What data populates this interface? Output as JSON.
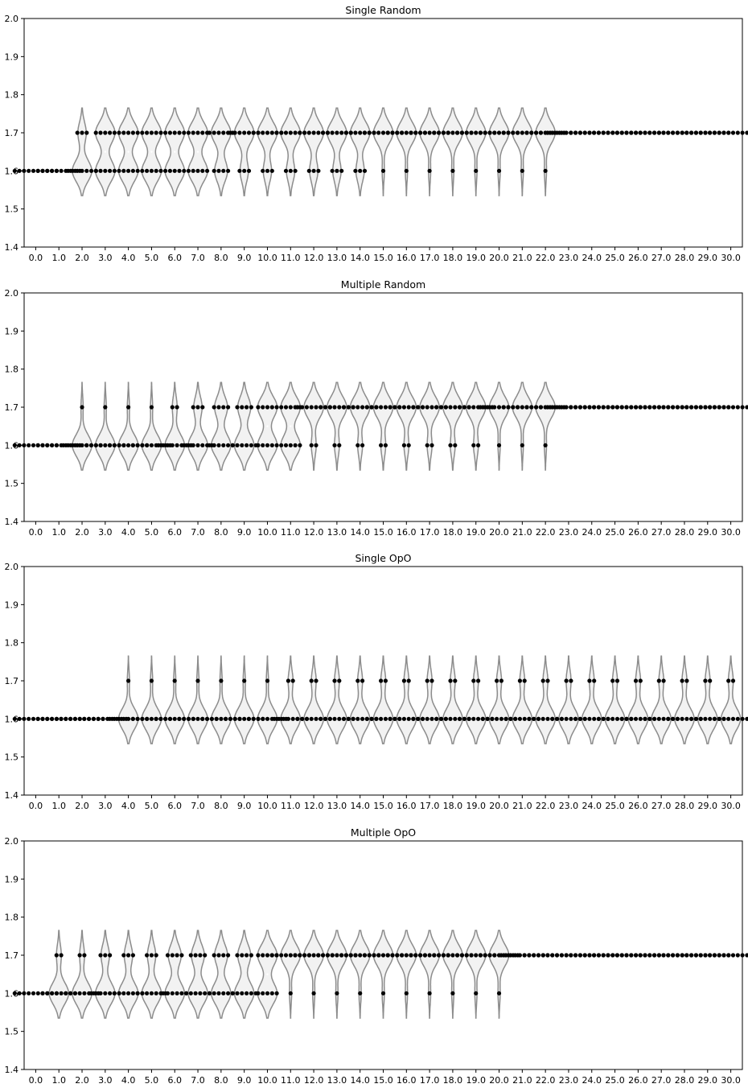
{
  "chart_data": [
    {
      "type": "violin",
      "title": "Single Random",
      "ylim": [
        1.4,
        2.0
      ],
      "yticks": [
        "1.4",
        "1.5",
        "1.6",
        "1.7",
        "1.8",
        "1.9",
        "2.0"
      ],
      "categories": [
        "0.0",
        "1.0",
        "2.0",
        "3.0",
        "4.0",
        "5.0",
        "6.0",
        "7.0",
        "8.0",
        "9.0",
        "10.0",
        "11.0",
        "12.0",
        "13.0",
        "14.0",
        "15.0",
        "16.0",
        "17.0",
        "18.0",
        "19.0",
        "20.0",
        "21.0",
        "22.0",
        "23.0",
        "24.0",
        "25.0",
        "26.0",
        "27.0",
        "28.0",
        "29.0",
        "30.0"
      ],
      "count_high": [
        0,
        0,
        3,
        5,
        5,
        5,
        5,
        5,
        6,
        7,
        7,
        7,
        7,
        7,
        7,
        9,
        9,
        9,
        9,
        9,
        9,
        9,
        9,
        10,
        10,
        10,
        10,
        10,
        10,
        10,
        10
      ],
      "count_low": [
        10,
        10,
        7,
        5,
        5,
        5,
        5,
        5,
        4,
        3,
        3,
        3,
        3,
        3,
        3,
        1,
        1,
        1,
        1,
        1,
        1,
        1,
        1,
        0,
        0,
        0,
        0,
        0,
        0,
        0,
        0
      ]
    },
    {
      "type": "violin",
      "title": "Multiple Random",
      "ylim": [
        1.4,
        2.0
      ],
      "yticks": [
        "1.4",
        "1.5",
        "1.6",
        "1.7",
        "1.8",
        "1.9",
        "2.0"
      ],
      "categories": [
        "0.0",
        "1.0",
        "2.0",
        "3.0",
        "4.0",
        "5.0",
        "6.0",
        "7.0",
        "8.0",
        "9.0",
        "10.0",
        "11.0",
        "12.0",
        "13.0",
        "14.0",
        "15.0",
        "16.0",
        "17.0",
        "18.0",
        "19.0",
        "20.0",
        "21.0",
        "22.0",
        "23.0",
        "24.0",
        "25.0",
        "26.0",
        "27.0",
        "28.0",
        "29.0",
        "30.0"
      ],
      "count_high": [
        0,
        0,
        1,
        1,
        1,
        1,
        2,
        3,
        4,
        4,
        5,
        5,
        8,
        8,
        8,
        8,
        8,
        8,
        8,
        8,
        9,
        9,
        9,
        10,
        10,
        10,
        10,
        10,
        10,
        10,
        10
      ],
      "count_low": [
        10,
        10,
        9,
        9,
        9,
        9,
        8,
        7,
        6,
        6,
        5,
        5,
        2,
        2,
        2,
        2,
        2,
        2,
        2,
        2,
        1,
        1,
        1,
        0,
        0,
        0,
        0,
        0,
        0,
        0,
        0
      ]
    },
    {
      "type": "violin",
      "title": "Single OpO",
      "ylim": [
        1.4,
        2.0
      ],
      "yticks": [
        "1.4",
        "1.5",
        "1.6",
        "1.7",
        "1.8",
        "1.9",
        "2.0"
      ],
      "categories": [
        "0.0",
        "1.0",
        "2.0",
        "3.0",
        "4.0",
        "5.0",
        "6.0",
        "7.0",
        "8.0",
        "9.0",
        "10.0",
        "11.0",
        "12.0",
        "13.0",
        "14.0",
        "15.0",
        "16.0",
        "17.0",
        "18.0",
        "19.0",
        "20.0",
        "21.0",
        "22.0",
        "23.0",
        "24.0",
        "25.0",
        "26.0",
        "27.0",
        "28.0",
        "29.0",
        "30.0"
      ],
      "count_high": [
        0,
        0,
        0,
        0,
        1,
        1,
        1,
        1,
        1,
        1,
        1,
        2,
        2,
        2,
        2,
        2,
        2,
        2,
        2,
        2,
        2,
        2,
        2,
        2,
        2,
        2,
        2,
        2,
        2,
        2,
        2
      ],
      "count_low": [
        10,
        10,
        10,
        10,
        9,
        9,
        9,
        9,
        9,
        9,
        9,
        8,
        8,
        8,
        8,
        8,
        8,
        8,
        8,
        8,
        8,
        8,
        8,
        8,
        8,
        8,
        8,
        8,
        8,
        8,
        8
      ]
    },
    {
      "type": "violin",
      "title": "Multiple OpO",
      "ylim": [
        1.4,
        2.0
      ],
      "yticks": [
        "1.4",
        "1.5",
        "1.6",
        "1.7",
        "1.8",
        "1.9",
        "2.0"
      ],
      "categories": [
        "0.0",
        "1.0",
        "2.0",
        "3.0",
        "4.0",
        "5.0",
        "6.0",
        "7.0",
        "8.0",
        "9.0",
        "10.0",
        "11.0",
        "12.0",
        "13.0",
        "14.0",
        "15.0",
        "16.0",
        "17.0",
        "18.0",
        "19.0",
        "20.0",
        "21.0",
        "22.0",
        "23.0",
        "24.0",
        "25.0",
        "26.0",
        "27.0",
        "28.0",
        "29.0",
        "30.0"
      ],
      "count_high": [
        0,
        2,
        2,
        3,
        3,
        3,
        4,
        4,
        4,
        4,
        5,
        9,
        9,
        9,
        9,
        9,
        9,
        9,
        9,
        9,
        9,
        10,
        10,
        10,
        10,
        10,
        10,
        10,
        10,
        10,
        10
      ],
      "count_low": [
        10,
        8,
        8,
        7,
        7,
        7,
        6,
        6,
        6,
        6,
        5,
        1,
        1,
        1,
        1,
        1,
        1,
        1,
        1,
        1,
        1,
        0,
        0,
        0,
        0,
        0,
        0,
        0,
        0,
        0,
        0
      ]
    }
  ]
}
